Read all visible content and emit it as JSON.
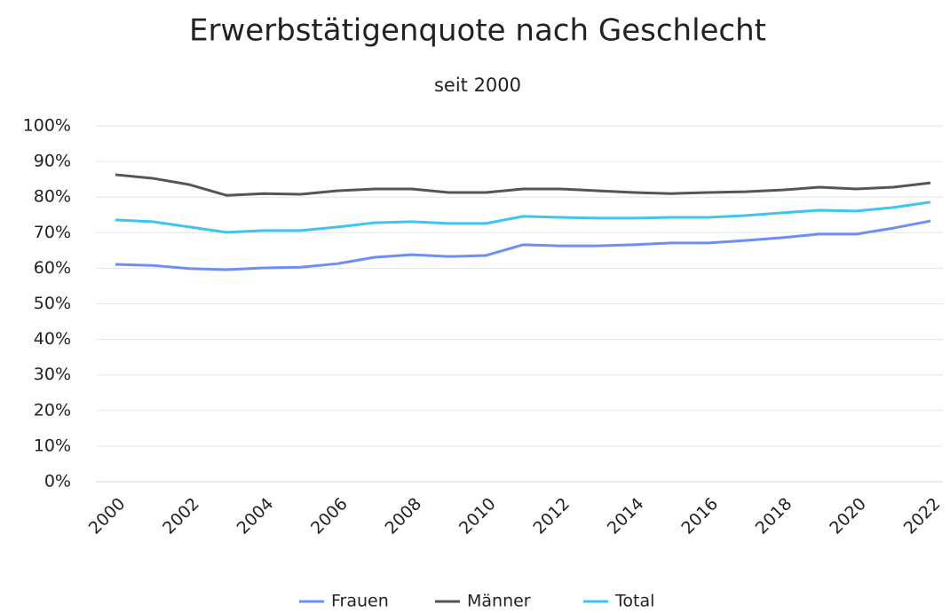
{
  "chart_data": {
    "type": "line",
    "title": "Erwerbstätigenquote nach Geschlecht",
    "subtitle": "seit 2000",
    "x": [
      2000,
      2001,
      2002,
      2003,
      2004,
      2005,
      2006,
      2007,
      2008,
      2009,
      2010,
      2011,
      2012,
      2013,
      2014,
      2015,
      2016,
      2017,
      2018,
      2019,
      2020,
      2021,
      2022
    ],
    "xlim": [
      2000,
      2022
    ],
    "xticks": [
      2000,
      2002,
      2004,
      2006,
      2008,
      2010,
      2012,
      2014,
      2016,
      2018,
      2020,
      2022
    ],
    "ylim": [
      0,
      100
    ],
    "yticks": [
      {
        "value": 0,
        "label": "0%"
      },
      {
        "value": 10,
        "label": "10%"
      },
      {
        "value": 20,
        "label": "20%"
      },
      {
        "value": 30,
        "label": "30%"
      },
      {
        "value": 40,
        "label": "40%"
      },
      {
        "value": 50,
        "label": "50%"
      },
      {
        "value": 60,
        "label": "60%"
      },
      {
        "value": 70,
        "label": "70%"
      },
      {
        "value": 80,
        "label": "80%"
      },
      {
        "value": 90,
        "label": "90%"
      },
      {
        "value": 100,
        "label": "100%"
      }
    ],
    "grid": true,
    "legend": "bottom",
    "series": [
      {
        "name": "Frauen",
        "color": "#6d8ff5",
        "values": [
          61.1,
          60.8,
          59.9,
          59.6,
          60.1,
          60.3,
          61.3,
          63.1,
          63.8,
          63.3,
          63.6,
          66.6,
          66.3,
          66.3,
          66.6,
          67.1,
          67.1,
          67.8,
          68.6,
          69.6,
          69.6,
          71.3,
          73.3
        ]
      },
      {
        "name": "Männer",
        "color": "#555555",
        "values": [
          86.3,
          85.3,
          83.5,
          80.5,
          81.0,
          80.8,
          81.8,
          82.3,
          82.3,
          81.3,
          81.3,
          82.3,
          82.3,
          81.8,
          81.3,
          81.0,
          81.3,
          81.5,
          82.0,
          82.8,
          82.3,
          82.8,
          84.0
        ]
      },
      {
        "name": "Total",
        "color": "#3dc4f0",
        "values": [
          73.6,
          73.1,
          71.6,
          70.1,
          70.6,
          70.6,
          71.6,
          72.8,
          73.1,
          72.6,
          72.6,
          74.6,
          74.3,
          74.1,
          74.1,
          74.3,
          74.3,
          74.8,
          75.6,
          76.3,
          76.1,
          77.1,
          78.6
        ]
      }
    ]
  }
}
